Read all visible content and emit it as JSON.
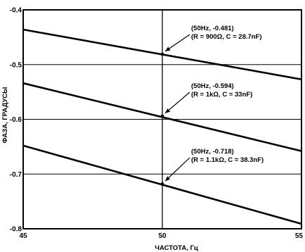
{
  "chart_data": {
    "type": "line",
    "xlabel": "ЧАСТОТА, Гц",
    "ylabel": "ФАЗА, ГРАДУСЫ",
    "xlim": [
      45,
      55
    ],
    "ylim": [
      -0.8,
      -0.4
    ],
    "x_ticks": [
      "45",
      "50",
      "55"
    ],
    "y_ticks": [
      "-0.4",
      "-0.5",
      "-0.6",
      "-0.7",
      "-0.8"
    ],
    "grid": true,
    "series": [
      {
        "x": [
          45,
          55
        ],
        "values": [
          -0.436,
          -0.527
        ]
      },
      {
        "x": [
          45,
          55
        ],
        "values": [
          -0.534,
          -0.658
        ]
      },
      {
        "x": [
          45,
          55
        ],
        "values": [
          -0.648,
          -0.791
        ]
      }
    ],
    "annotations": [
      {
        "lines": [
          "(50Hz, -0.481)",
          "(R = 900Ω, C = 28.7nF)"
        ],
        "x": 50,
        "y": -0.481
      },
      {
        "lines": [
          "(50Hz, -0.594)",
          "(R = 1kΩ, C = 33nF)"
        ],
        "x": 50,
        "y": -0.594
      },
      {
        "lines": [
          "(50Hz, -0.718)",
          "(R = 1.1kΩ, C = 38.3nF)"
        ],
        "x": 50,
        "y": -0.718
      }
    ]
  }
}
